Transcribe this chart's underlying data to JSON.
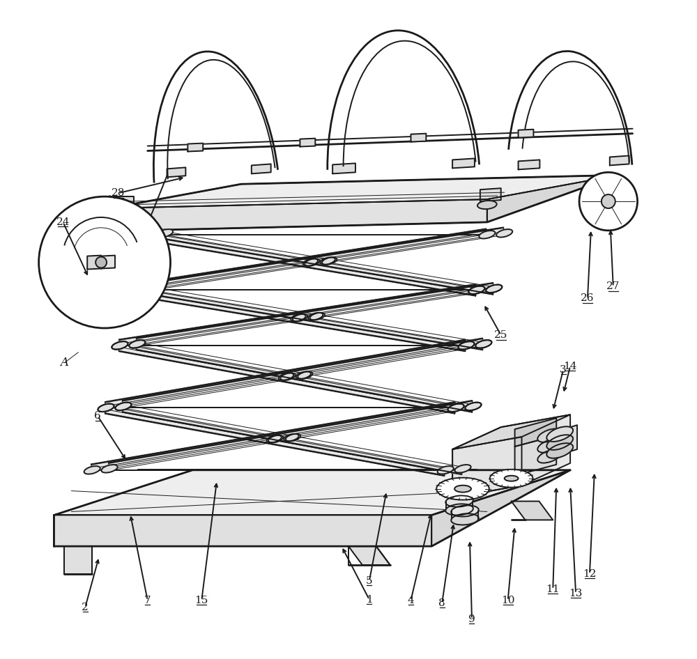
{
  "bg_color": "#ffffff",
  "lc": "#1a1a1a",
  "lw": 1.4,
  "tlw": 0.7,
  "thw": 2.0,
  "fig_w": 10.0,
  "fig_h": 9.46,
  "dpi": 100
}
